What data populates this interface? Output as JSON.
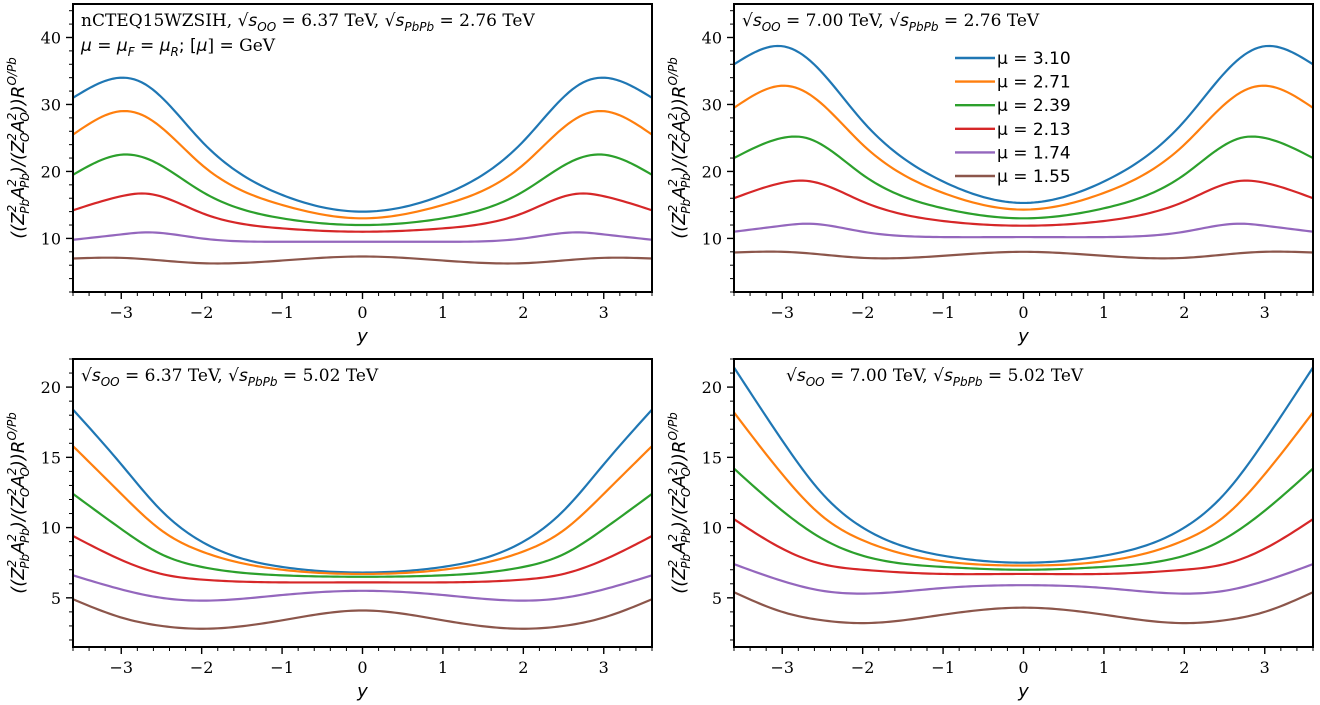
{
  "chart_data": [
    {
      "type": "line",
      "panel": "top-left",
      "annotation_lines": [
        {
          "parts": [
            {
              "t": "nCTEQ15WZSIH, ",
              "s": "serif"
            },
            {
              "t": "√",
              "s": "sans"
            },
            {
              "t": "s",
              "s": "ital"
            },
            {
              "t": "OO",
              "s": "sub"
            },
            {
              "t": " = 6.37 TeV, ",
              "s": "serif"
            },
            {
              "t": "√",
              "s": "sans"
            },
            {
              "t": "s",
              "s": "ital"
            },
            {
              "t": "PbPb",
              "s": "sub"
            },
            {
              "t": " = 2.76 TeV",
              "s": "serif"
            }
          ]
        },
        {
          "parts": [
            {
              "t": "μ",
              "s": "ital"
            },
            {
              "t": " = ",
              "s": "sans"
            },
            {
              "t": "μ",
              "s": "ital"
            },
            {
              "t": "F",
              "s": "sub"
            },
            {
              "t": " = ",
              "s": "sans"
            },
            {
              "t": "μ",
              "s": "ital"
            },
            {
              "t": "R",
              "s": "sub"
            },
            {
              "t": ";  [",
              "s": "sans"
            },
            {
              "t": "μ",
              "s": "ital"
            },
            {
              "t": "] = GeV",
              "s": "serif"
            }
          ]
        }
      ],
      "xlabel": "y",
      "ylabel": "((Z²_Pb A²_Pb)/(Z²_O A²_O)) R^{O/Pb}",
      "xlim": [
        -3.6,
        3.6
      ],
      "ylim": [
        2,
        45
      ],
      "xticks": [
        -3,
        -2,
        -1,
        0,
        1,
        2,
        3
      ],
      "xtick_labels": [
        "−3",
        "−2",
        "−1",
        "0",
        "1",
        "2",
        "3"
      ],
      "yticks": [
        10,
        20,
        30,
        40
      ],
      "ytick_labels": [
        "10",
        "20",
        "30",
        "40"
      ],
      "x": [
        -3.6,
        -3.0,
        -2.7,
        -2.0,
        -1.0,
        0,
        1.0,
        2.0,
        2.7,
        3.0,
        3.6
      ],
      "series": [
        {
          "name": "μ = 3.10",
          "values": [
            31.0,
            34.0,
            33.0,
            24.5,
            16.5,
            14.0,
            16.5,
            24.5,
            33.0,
            34.0,
            31.0
          ]
        },
        {
          "name": "μ = 2.71",
          "values": [
            25.5,
            29.0,
            28.2,
            21.0,
            15.0,
            13.0,
            15.0,
            21.0,
            28.2,
            29.0,
            25.5
          ]
        },
        {
          "name": "μ = 2.39",
          "values": [
            19.5,
            22.5,
            22.0,
            17.0,
            13.0,
            12.0,
            13.0,
            17.0,
            22.0,
            22.5,
            19.5
          ]
        },
        {
          "name": "μ = 2.13",
          "values": [
            14.2,
            16.3,
            16.7,
            13.8,
            11.5,
            11.0,
            11.5,
            13.8,
            16.7,
            16.3,
            14.2
          ]
        },
        {
          "name": "μ = 1.74",
          "values": [
            9.8,
            10.6,
            10.9,
            10.0,
            9.5,
            9.5,
            9.5,
            10.0,
            10.9,
            10.6,
            9.8
          ]
        },
        {
          "name": "μ = 1.55",
          "values": [
            7.0,
            7.1,
            6.9,
            6.3,
            6.7,
            7.3,
            6.7,
            6.3,
            6.9,
            7.1,
            7.0
          ]
        }
      ]
    },
    {
      "type": "line",
      "panel": "top-right",
      "annotation_lines": [
        {
          "parts": [
            {
              "t": "√",
              "s": "sans"
            },
            {
              "t": "s",
              "s": "ital"
            },
            {
              "t": "OO",
              "s": "sub"
            },
            {
              "t": " = 7.00 TeV, ",
              "s": "serif"
            },
            {
              "t": "√",
              "s": "sans"
            },
            {
              "t": "s",
              "s": "ital"
            },
            {
              "t": "PbPb",
              "s": "sub"
            },
            {
              "t": " = 2.76 TeV",
              "s": "serif"
            }
          ]
        }
      ],
      "legend_placement": "upper-middle",
      "xlabel": "y",
      "ylabel": "((Z²_Pb A²_Pb)/(Z²_O A²_O)) R^{O/Pb}",
      "xlim": [
        -3.6,
        3.6
      ],
      "ylim": [
        2,
        45
      ],
      "xticks": [
        -3,
        -2,
        -1,
        0,
        1,
        2,
        3
      ],
      "xtick_labels": [
        "−3",
        "−2",
        "−1",
        "0",
        "1",
        "2",
        "3"
      ],
      "yticks": [
        10,
        20,
        30,
        40
      ],
      "ytick_labels": [
        "10",
        "20",
        "30",
        "40"
      ],
      "x": [
        -3.6,
        -3.0,
        -2.7,
        -2.0,
        -1.0,
        0,
        1.0,
        2.0,
        2.7,
        3.0,
        3.6
      ],
      "series": [
        {
          "name": "μ = 3.10",
          "values": [
            36.0,
            38.7,
            37.0,
            27.5,
            18.5,
            15.3,
            18.5,
            27.5,
            37.0,
            38.7,
            36.0
          ]
        },
        {
          "name": "μ = 2.71",
          "values": [
            29.5,
            32.8,
            31.8,
            24.0,
            16.8,
            14.3,
            16.8,
            24.0,
            31.8,
            32.8,
            29.5
          ]
        },
        {
          "name": "μ = 2.39",
          "values": [
            22.0,
            25.0,
            25.0,
            19.5,
            14.5,
            13.0,
            14.5,
            19.5,
            25.0,
            25.0,
            22.0
          ]
        },
        {
          "name": "μ = 2.13",
          "values": [
            16.0,
            18.3,
            18.6,
            15.5,
            12.6,
            11.9,
            12.6,
            15.5,
            18.6,
            18.3,
            16.0
          ]
        },
        {
          "name": "μ = 1.74",
          "values": [
            11.0,
            11.9,
            12.2,
            11.0,
            10.2,
            10.2,
            10.2,
            11.0,
            12.2,
            11.9,
            11.0
          ]
        },
        {
          "name": "μ = 1.55",
          "values": [
            7.9,
            8.0,
            7.8,
            7.1,
            7.4,
            8.0,
            7.4,
            7.1,
            7.8,
            8.0,
            7.9
          ]
        }
      ],
      "colors": [
        "#1f77b4",
        "#ff7f0e",
        "#2ca02c",
        "#d62728",
        "#9467bd",
        "#8c564b"
      ]
    },
    {
      "type": "line",
      "panel": "bottom-left",
      "annotation_lines": [
        {
          "parts": [
            {
              "t": "√",
              "s": "sans"
            },
            {
              "t": "s",
              "s": "ital"
            },
            {
              "t": "OO",
              "s": "sub"
            },
            {
              "t": " = 6.37 TeV, ",
              "s": "serif"
            },
            {
              "t": "√",
              "s": "sans"
            },
            {
              "t": "s",
              "s": "ital"
            },
            {
              "t": "PbPb",
              "s": "sub"
            },
            {
              "t": " = 5.02 TeV",
              "s": "serif"
            }
          ]
        }
      ],
      "xlabel": "y",
      "ylabel": "((Z²_Pb A²_Pb)/(Z²_O A²_O)) R^{O/Pb}",
      "xlim": [
        -3.6,
        3.6
      ],
      "ylim": [
        1.5,
        22
      ],
      "xticks": [
        -3,
        -2,
        -1,
        0,
        1,
        2,
        3
      ],
      "xtick_labels": [
        "−3",
        "−2",
        "−1",
        "0",
        "1",
        "2",
        "3"
      ],
      "yticks": [
        5,
        10,
        15,
        20
      ],
      "ytick_labels": [
        "5",
        "10",
        "15",
        "20"
      ],
      "x": [
        -3.6,
        -3.0,
        -2.5,
        -2.0,
        -1.0,
        0,
        1.0,
        2.0,
        2.5,
        3.0,
        3.6
      ],
      "series": [
        {
          "name": "μ = 3.10",
          "values": [
            18.4,
            14.5,
            11.2,
            9.0,
            7.2,
            6.8,
            7.2,
            9.0,
            11.2,
            14.5,
            18.4
          ]
        },
        {
          "name": "μ = 2.71",
          "values": [
            15.8,
            12.4,
            9.8,
            8.3,
            7.0,
            6.7,
            7.0,
            8.3,
            9.8,
            12.4,
            15.8
          ]
        },
        {
          "name": "μ = 2.39",
          "values": [
            12.4,
            9.9,
            8.1,
            7.2,
            6.6,
            6.5,
            6.6,
            7.2,
            8.1,
            9.9,
            12.4
          ]
        },
        {
          "name": "μ = 2.13",
          "values": [
            9.4,
            7.7,
            6.7,
            6.3,
            6.1,
            6.1,
            6.1,
            6.3,
            6.7,
            7.7,
            9.4
          ]
        },
        {
          "name": "μ = 1.74",
          "values": [
            6.6,
            5.6,
            5.0,
            4.8,
            5.2,
            5.5,
            5.2,
            4.8,
            5.0,
            5.6,
            6.6
          ]
        },
        {
          "name": "μ = 1.55",
          "values": [
            4.9,
            3.6,
            3.0,
            2.8,
            3.4,
            4.1,
            3.4,
            2.8,
            3.0,
            3.6,
            4.9
          ]
        }
      ]
    },
    {
      "type": "line",
      "panel": "bottom-right",
      "annotation_lines": [
        {
          "parts": [
            {
              "t": "√",
              "s": "sans"
            },
            {
              "t": "s",
              "s": "ital"
            },
            {
              "t": "OO",
              "s": "sub"
            },
            {
              "t": " = 7.00 TeV, ",
              "s": "serif"
            },
            {
              "t": "√",
              "s": "sans"
            },
            {
              "t": "s",
              "s": "ital"
            },
            {
              "t": "PbPb",
              "s": "sub"
            },
            {
              "t": " = 5.02 TeV",
              "s": "serif"
            }
          ]
        }
      ],
      "xlabel": "y",
      "ylabel": "((Z²_Pb A²_Pb)/(Z²_O A²_O)) R^{O/Pb}",
      "xlim": [
        -3.6,
        3.6
      ],
      "ylim": [
        1.5,
        22
      ],
      "xticks": [
        -3,
        -2,
        -1,
        0,
        1,
        2,
        3
      ],
      "xtick_labels": [
        "−3",
        "−2",
        "−1",
        "0",
        "1",
        "2",
        "3"
      ],
      "yticks": [
        5,
        10,
        15,
        20
      ],
      "ytick_labels": [
        "5",
        "10",
        "15",
        "20"
      ],
      "x": [
        -3.6,
        -3.0,
        -2.5,
        -2.0,
        -1.0,
        0,
        1.0,
        2.0,
        2.5,
        3.0,
        3.6
      ],
      "series": [
        {
          "name": "μ = 3.10",
          "values": [
            21.4,
            16.2,
            12.4,
            10.0,
            8.0,
            7.5,
            8.0,
            10.0,
            12.4,
            16.2,
            21.4
          ]
        },
        {
          "name": "μ = 2.71",
          "values": [
            18.2,
            13.8,
            10.8,
            9.1,
            7.6,
            7.3,
            7.6,
            9.1,
            10.8,
            13.8,
            18.2
          ]
        },
        {
          "name": "μ = 2.39",
          "values": [
            14.2,
            11.2,
            9.2,
            8.0,
            7.2,
            7.0,
            7.2,
            8.0,
            9.2,
            11.2,
            14.2
          ]
        },
        {
          "name": "μ = 2.13",
          "values": [
            10.6,
            8.5,
            7.4,
            7.0,
            6.7,
            6.7,
            6.7,
            7.0,
            7.4,
            8.5,
            10.6
          ]
        },
        {
          "name": "μ = 1.74",
          "values": [
            7.4,
            6.2,
            5.5,
            5.3,
            5.7,
            5.9,
            5.7,
            5.3,
            5.5,
            6.2,
            7.4
          ]
        },
        {
          "name": "μ = 1.55",
          "values": [
            5.4,
            4.0,
            3.4,
            3.2,
            3.8,
            4.3,
            3.8,
            3.2,
            3.4,
            4.0,
            5.4
          ]
        }
      ]
    }
  ]
}
